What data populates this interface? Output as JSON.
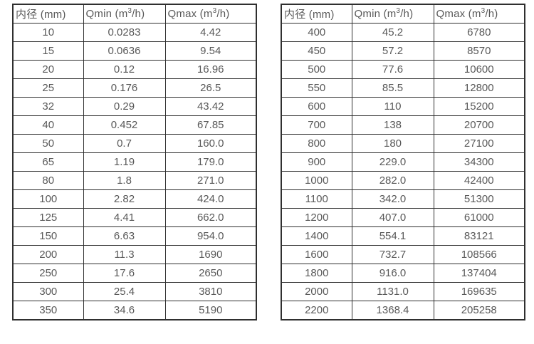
{
  "style": {
    "background_color": "#ffffff",
    "border_color": "#2f2f2f",
    "text_color": "#595959"
  },
  "tables": [
    {
      "name": "diameter-flow-table-small",
      "headers": [
        "内径 (mm)",
        "Qmin (m³/h)",
        "Qmax (m³/h)"
      ],
      "rows": [
        [
          "10",
          "0.0283",
          "4.42"
        ],
        [
          "15",
          "0.0636",
          "9.54"
        ],
        [
          "20",
          "0.12",
          "16.96"
        ],
        [
          "25",
          "0.176",
          "26.5"
        ],
        [
          "32",
          "0.29",
          "43.42"
        ],
        [
          "40",
          "0.452",
          "67.85"
        ],
        [
          "50",
          "0.7",
          "160.0"
        ],
        [
          "65",
          "1.19",
          "179.0"
        ],
        [
          "80",
          "1.8",
          "271.0"
        ],
        [
          "100",
          "2.82",
          "424.0"
        ],
        [
          "125",
          "4.41",
          "662.0"
        ],
        [
          "150",
          "6.63",
          "954.0"
        ],
        [
          "200",
          "11.3",
          "1690"
        ],
        [
          "250",
          "17.6",
          "2650"
        ],
        [
          "300",
          "25.4",
          "3810"
        ],
        [
          "350",
          "34.6",
          "5190"
        ]
      ]
    },
    {
      "name": "diameter-flow-table-large",
      "headers": [
        "内径 (mm)",
        "Qmin (m³/h)",
        "Qmax (m³/h)"
      ],
      "rows": [
        [
          "400",
          "45.2",
          "6780"
        ],
        [
          "450",
          "57.2",
          "8570"
        ],
        [
          "500",
          "77.6",
          "10600"
        ],
        [
          "550",
          "85.5",
          "12800"
        ],
        [
          "600",
          "110",
          "15200"
        ],
        [
          "700",
          "138",
          "20700"
        ],
        [
          "800",
          "180",
          "27100"
        ],
        [
          "900",
          "229.0",
          "34300"
        ],
        [
          "1000",
          "282.0",
          "42400"
        ],
        [
          "1100",
          "342.0",
          "51300"
        ],
        [
          "1200",
          "407.0",
          "61000"
        ],
        [
          "1400",
          "554.1",
          "83121"
        ],
        [
          "1600",
          "732.7",
          "108566"
        ],
        [
          "1800",
          "916.0",
          "137404"
        ],
        [
          "2000",
          "1131.0",
          "169635"
        ],
        [
          "2200",
          "1368.4",
          "205258"
        ]
      ]
    }
  ]
}
